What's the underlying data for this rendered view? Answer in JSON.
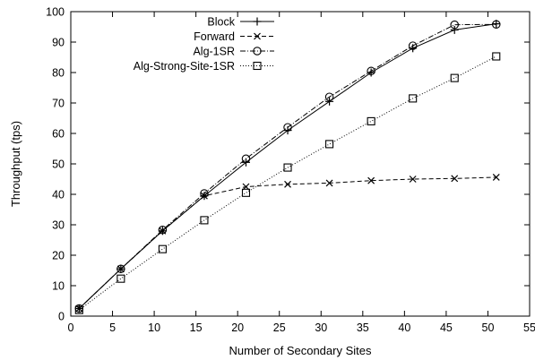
{
  "chart_data": {
    "type": "line",
    "title": "",
    "xlabel": "Number of Secondary Sites",
    "ylabel": "Throughput (tps)",
    "xlim": [
      0,
      55
    ],
    "ylim": [
      0,
      100
    ],
    "xticks": [
      0,
      5,
      10,
      15,
      20,
      25,
      30,
      35,
      40,
      45,
      50,
      55
    ],
    "yticks": [
      0,
      10,
      20,
      30,
      40,
      50,
      60,
      70,
      80,
      90,
      100
    ],
    "grid": false,
    "legend_position": "top-left",
    "x": [
      1,
      6,
      11,
      16,
      21,
      26,
      31,
      36,
      41,
      46,
      51
    ],
    "series": [
      {
        "name": "Block",
        "marker": "plus",
        "line_style": "solid",
        "values": [
          2.5,
          15.5,
          28,
          39.5,
          50.5,
          61,
          70.5,
          80,
          88,
          94,
          96
        ]
      },
      {
        "name": "Forward",
        "marker": "cross",
        "line_style": "dashed",
        "values": [
          2.5,
          15.5,
          28,
          39.5,
          42.5,
          43.3,
          43.7,
          44.5,
          45,
          45.2,
          45.6
        ]
      },
      {
        "name": "Alg-1SR",
        "marker": "circle",
        "line_style": "dashdot",
        "values": [
          2.5,
          15.5,
          28.3,
          40.3,
          51.7,
          62,
          72,
          80.5,
          88.8,
          95.7,
          95.8
        ]
      },
      {
        "name": "Alg-Strong-Site-1SR",
        "marker": "square",
        "line_style": "dotted",
        "values": [
          2,
          12.3,
          22,
          31.5,
          40.5,
          48.8,
          56.5,
          64,
          71.5,
          78.2,
          85.3
        ]
      }
    ]
  }
}
